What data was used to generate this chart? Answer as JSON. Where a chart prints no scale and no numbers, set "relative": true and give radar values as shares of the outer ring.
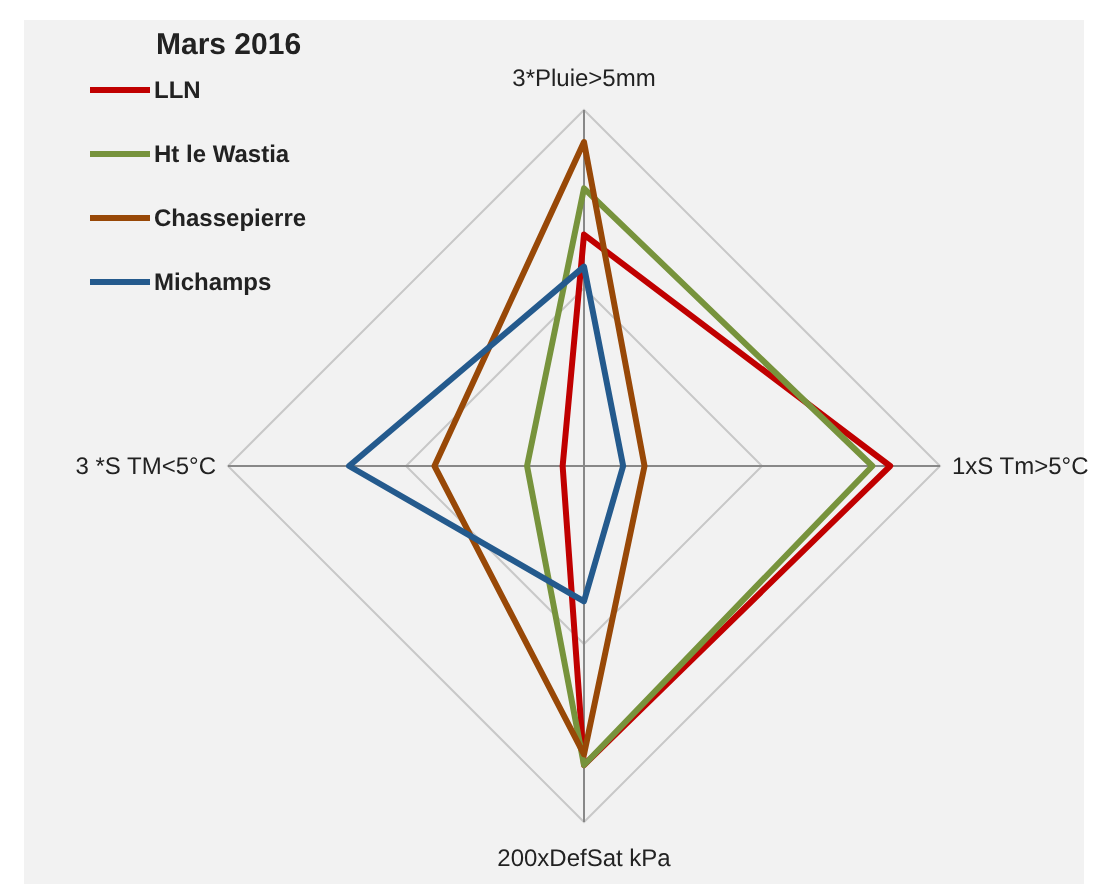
{
  "chart_data": {
    "type": "radar",
    "title": "Mars  2016",
    "relative": true,
    "grid": true,
    "legend": "top left",
    "categories": [
      "3*Pluie>5mm",
      "1xS Tm>5°C",
      "200xDefSat kPa",
      "3 *S TM<5°C"
    ],
    "series": [
      {
        "name": "LLN",
        "color": "#c00000",
        "values": [
          0.65,
          0.86,
          0.84,
          0.06
        ]
      },
      {
        "name": "Ht le Wastia",
        "color": "#77933c",
        "values": [
          0.78,
          0.81,
          0.84,
          0.16
        ]
      },
      {
        "name": "Chassepierre",
        "color": "#984807",
        "values": [
          0.91,
          0.17,
          0.81,
          0.42
        ]
      },
      {
        "name": "Michamps",
        "color": "#245a8d",
        "values": [
          0.56,
          0.11,
          0.38,
          0.66
        ]
      }
    ]
  }
}
